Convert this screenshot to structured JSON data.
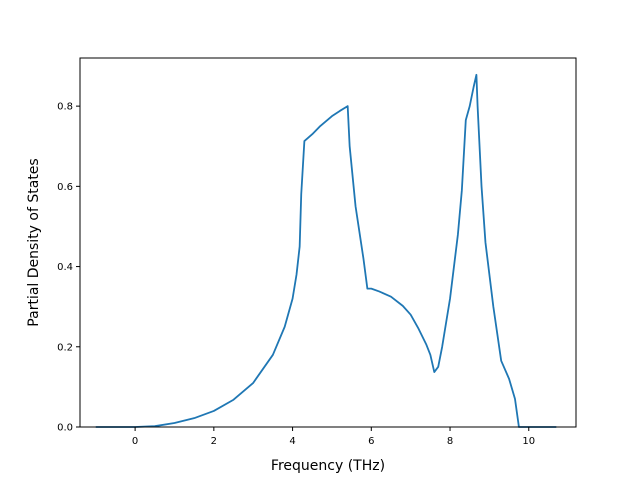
{
  "chart_data": {
    "type": "line",
    "xlabel": "Frequency (THz)",
    "ylabel": "Partial Density of States",
    "xlim": [
      -1.4,
      11.2
    ],
    "ylim": [
      0.0,
      0.92
    ],
    "xticks": [
      0,
      2,
      4,
      6,
      8,
      10
    ],
    "yticks": [
      0.0,
      0.2,
      0.4,
      0.6,
      0.8
    ],
    "xtick_labels": [
      "0",
      "2",
      "4",
      "6",
      "8",
      "10"
    ],
    "ytick_labels": [
      "0.0",
      "0.2",
      "0.4",
      "0.6",
      "0.8"
    ],
    "grid": false,
    "series": [
      {
        "color": "#1f77b4",
        "x": [
          -1.0,
          -0.5,
          0.0,
          0.5,
          1.0,
          1.5,
          2.0,
          2.5,
          3.0,
          3.5,
          3.8,
          4.0,
          4.1,
          4.18,
          4.22,
          4.3,
          4.5,
          4.7,
          5.0,
          5.2,
          5.4,
          5.45,
          5.6,
          5.8,
          5.9,
          6.0,
          6.2,
          6.5,
          6.8,
          7.0,
          7.2,
          7.4,
          7.5,
          7.6,
          7.7,
          7.8,
          8.0,
          8.2,
          8.3,
          8.4,
          8.5,
          8.6,
          8.67,
          8.7,
          8.8,
          8.9,
          9.1,
          9.3,
          9.5,
          9.65,
          9.75,
          10.0,
          10.3,
          10.7
        ],
        "y": [
          0.0,
          0.0,
          0.0,
          0.002,
          0.01,
          0.022,
          0.04,
          0.068,
          0.11,
          0.18,
          0.25,
          0.32,
          0.38,
          0.45,
          0.58,
          0.713,
          0.73,
          0.75,
          0.775,
          0.788,
          0.8,
          0.7,
          0.55,
          0.42,
          0.345,
          0.345,
          0.338,
          0.325,
          0.302,
          0.28,
          0.245,
          0.205,
          0.18,
          0.137,
          0.15,
          0.2,
          0.32,
          0.48,
          0.59,
          0.765,
          0.8,
          0.848,
          0.878,
          0.8,
          0.6,
          0.46,
          0.3,
          0.165,
          0.12,
          0.07,
          0.0,
          0.0,
          0.0,
          0.0
        ]
      }
    ]
  }
}
